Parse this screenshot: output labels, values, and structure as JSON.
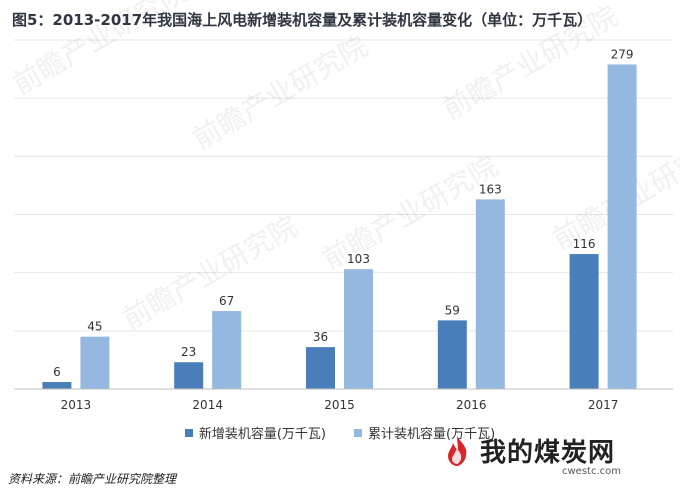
{
  "title": "图5：2013-2017年我国海上风电新增装机容量及累计装机容量变化（单位：万千瓦）",
  "chart_data": {
    "type": "bar",
    "categories": [
      "2013",
      "2014",
      "2015",
      "2016",
      "2017"
    ],
    "series": [
      {
        "name": "新增装机容量(万千瓦)",
        "values": [
          6,
          23,
          36,
          59,
          116
        ],
        "color": "#4a7eba"
      },
      {
        "name": "累计装机容量(万千瓦)",
        "values": [
          45,
          67,
          103,
          163,
          279
        ],
        "color": "#95b8e0"
      }
    ],
    "ylim": [
      0,
      300
    ],
    "grid": true,
    "legend": "bottom-center",
    "show_y_tick_labels": false
  },
  "source": "资料来源：前瞻产业研究院整理",
  "logo": {
    "text": "我的煤炭网",
    "url": "cwestc.com"
  },
  "watermark": "前瞻产业研究院",
  "colors": {
    "bar_new": "#4a7eba",
    "bar_cumulative": "#95b8e0",
    "logo_red": "#d9262b"
  }
}
